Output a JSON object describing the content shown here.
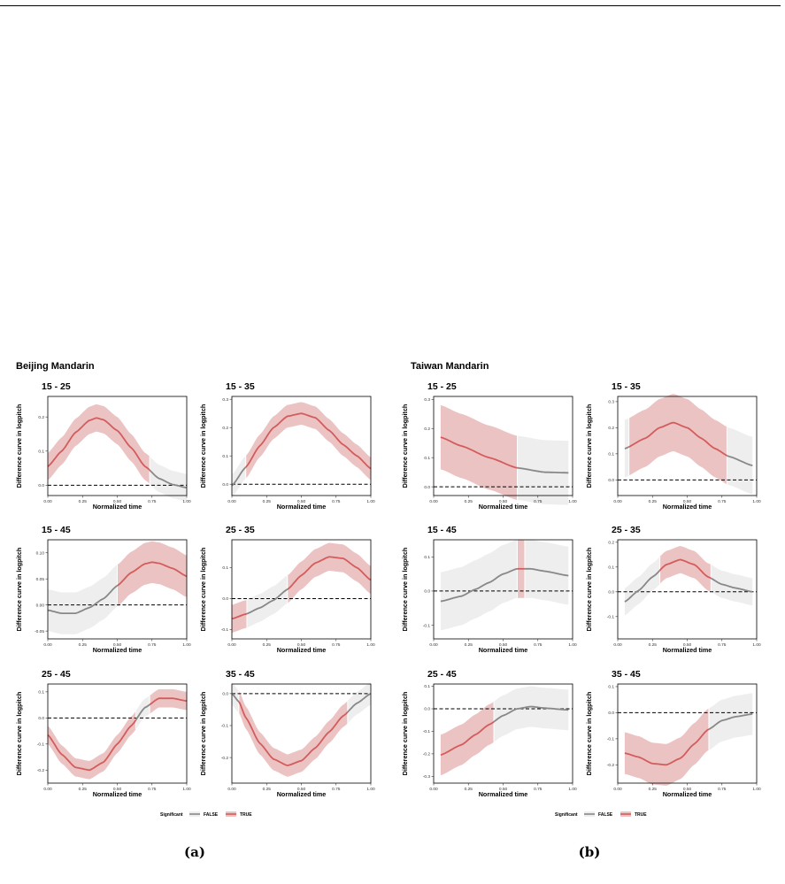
{
  "colors": {
    "significant": "#d35c5c",
    "significant_band": "#ecc3c3",
    "nonsignificant": "#888888",
    "nonsignificant_band": "#eeeeee"
  },
  "legend": {
    "title": "Significant",
    "false_label": "FALSE",
    "true_label": "TRUE"
  },
  "subfigure_labels": [
    "(a)",
    "(b)"
  ],
  "chart_data": [
    {
      "group": "Beijing Mandarin",
      "panels": [
        {
          "type": "line",
          "title": "15 - 25",
          "xlabel": "Normalized time",
          "ylabel": "Difference curve in logpitch",
          "xlim": [
            0,
            1
          ],
          "ylim": [
            -0.03,
            0.26
          ],
          "yticks": [
            0.0,
            0.1,
            0.2
          ],
          "yticklabels": [
            "0.0",
            "0.1",
            "0.2"
          ],
          "x": [
            0,
            0.1,
            0.2,
            0.3,
            0.35,
            0.4,
            0.5,
            0.6,
            0.7,
            0.8,
            0.9,
            1.0
          ],
          "y": [
            0.055,
            0.1,
            0.155,
            0.19,
            0.197,
            0.192,
            0.16,
            0.11,
            0.055,
            0.02,
            0.002,
            -0.007
          ],
          "band": 0.04,
          "sig_ranges": [
            [
              0,
              0.73
            ]
          ]
        },
        {
          "type": "line",
          "title": "15 - 35",
          "xlabel": "Normalized time",
          "ylabel": "Difference curve in logpitch",
          "xlim": [
            0,
            1
          ],
          "ylim": [
            -0.04,
            0.31
          ],
          "yticks": [
            0.0,
            0.1,
            0.2,
            0.3
          ],
          "yticklabels": [
            "0.0",
            "0.1",
            "0.2",
            "0.3"
          ],
          "x": [
            0,
            0.1,
            0.2,
            0.3,
            0.4,
            0.5,
            0.6,
            0.7,
            0.8,
            0.9,
            1.0
          ],
          "y": [
            -0.005,
            0.06,
            0.135,
            0.2,
            0.24,
            0.25,
            0.235,
            0.19,
            0.14,
            0.1,
            0.055
          ],
          "band": 0.04,
          "sig_ranges": [
            [
              0.1,
              1.0
            ]
          ]
        },
        {
          "type": "line",
          "title": "15 - 45",
          "xlabel": "Normalized time",
          "ylabel": "Difference curve in logpitch",
          "xlim": [
            0,
            1
          ],
          "ylim": [
            -0.065,
            0.125
          ],
          "yticks": [
            -0.05,
            0.0,
            0.05,
            0.1
          ],
          "yticklabels": [
            "-0.05",
            "0.00",
            "0.05",
            "0.10"
          ],
          "x": [
            0,
            0.1,
            0.2,
            0.3,
            0.4,
            0.5,
            0.6,
            0.7,
            0.75,
            0.8,
            0.9,
            1.0
          ],
          "y": [
            -0.01,
            -0.016,
            -0.016,
            -0.005,
            0.012,
            0.037,
            0.062,
            0.079,
            0.082,
            0.08,
            0.07,
            0.055
          ],
          "band": 0.04,
          "sig_ranges": [
            [
              0.5,
              1.0
            ]
          ]
        },
        {
          "type": "line",
          "title": "25 - 35",
          "xlabel": "Normalized time",
          "ylabel": "Difference curve in logpitch",
          "xlim": [
            0,
            1
          ],
          "ylim": [
            -0.13,
            0.19
          ],
          "yticks": [
            -0.1,
            0.0,
            0.1
          ],
          "yticklabels": [
            "-0.1",
            "0.0",
            "0.1"
          ],
          "x": [
            0,
            0.1,
            0.2,
            0.3,
            0.4,
            0.5,
            0.6,
            0.7,
            0.8,
            0.9,
            1.0
          ],
          "y": [
            -0.065,
            -0.05,
            -0.03,
            -0.005,
            0.03,
            0.075,
            0.115,
            0.135,
            0.13,
            0.1,
            0.06
          ],
          "band": 0.045,
          "sig_ranges": [
            [
              0,
              0.1
            ],
            [
              0.4,
              1.0
            ]
          ]
        },
        {
          "type": "line",
          "title": "25 - 45",
          "xlabel": "Normalized time",
          "ylabel": "Difference curve in logpitch",
          "xlim": [
            0,
            1
          ],
          "ylim": [
            -0.25,
            0.13
          ],
          "yticks": [
            -0.2,
            -0.1,
            0.0,
            0.1
          ],
          "yticklabels": [
            "-0.2",
            "-0.1",
            "0.0",
            "0.1"
          ],
          "x": [
            0,
            0.1,
            0.2,
            0.3,
            0.4,
            0.5,
            0.6,
            0.7,
            0.8,
            0.9,
            1.0
          ],
          "y": [
            -0.065,
            -0.14,
            -0.19,
            -0.2,
            -0.17,
            -0.1,
            -0.03,
            0.04,
            0.075,
            0.075,
            0.065
          ],
          "band": 0.035,
          "sig_ranges": [
            [
              0,
              0.63
            ],
            [
              0.73,
              1.0
            ]
          ]
        },
        {
          "type": "line",
          "title": "35 - 45",
          "xlabel": "Normalized time",
          "ylabel": "Difference curve in logpitch",
          "xlim": [
            0,
            1
          ],
          "ylim": [
            -0.28,
            0.03
          ],
          "yticks": [
            -0.2,
            -0.1,
            0.0
          ],
          "yticklabels": [
            "-0.2",
            "-0.1",
            "0.0"
          ],
          "x": [
            0,
            0.05,
            0.1,
            0.2,
            0.3,
            0.4,
            0.5,
            0.6,
            0.7,
            0.8,
            0.9,
            1.0
          ],
          "y": [
            0,
            -0.025,
            -0.075,
            -0.155,
            -0.205,
            -0.225,
            -0.21,
            -0.17,
            -0.12,
            -0.07,
            -0.03,
            0
          ],
          "band": 0.035,
          "sig_ranges": [
            [
              0.05,
              0.83
            ]
          ]
        }
      ]
    },
    {
      "group": "Taiwan Mandarin",
      "panels": [
        {
          "type": "line",
          "title": "15 - 25",
          "xlabel": "Normalized time",
          "ylabel": "Difference curve in logpitch",
          "xlim": [
            0,
            1
          ],
          "ylim": [
            -0.03,
            0.31
          ],
          "yticks": [
            0.0,
            0.1,
            0.2,
            0.3
          ],
          "yticklabels": [
            "0.0",
            "0.1",
            "0.2",
            "0.3"
          ],
          "x": [
            0.05,
            0.2,
            0.4,
            0.6,
            0.8,
            0.97
          ],
          "y": [
            0.17,
            0.14,
            0.1,
            0.065,
            0.05,
            0.048
          ],
          "band": 0.11,
          "sig_ranges": [
            [
              0.05,
              0.6
            ]
          ]
        },
        {
          "type": "line",
          "title": "15 - 35",
          "xlabel": "Normalized time",
          "ylabel": "Difference curve in logpitch",
          "xlim": [
            0,
            1
          ],
          "ylim": [
            -0.06,
            0.32
          ],
          "yticks": [
            0.0,
            0.1,
            0.2,
            0.3
          ],
          "yticklabels": [
            "0.0",
            "0.1",
            "0.2",
            "0.3"
          ],
          "x": [
            0.05,
            0.2,
            0.3,
            0.4,
            0.5,
            0.6,
            0.7,
            0.8,
            0.97
          ],
          "y": [
            0.12,
            0.16,
            0.2,
            0.22,
            0.2,
            0.16,
            0.12,
            0.09,
            0.055
          ],
          "band": 0.11,
          "sig_ranges": [
            [
              0.08,
              0.78
            ]
          ]
        },
        {
          "type": "line",
          "title": "15 - 45",
          "xlabel": "Normalized time",
          "ylabel": "Difference curve in logpitch",
          "xlim": [
            0,
            1
          ],
          "ylim": [
            -0.14,
            0.15
          ],
          "yticks": [
            -0.1,
            0.0,
            0.1
          ],
          "yticklabels": [
            "-0.1",
            "0.0",
            "0.1"
          ],
          "x": [
            0.05,
            0.2,
            0.3,
            0.4,
            0.5,
            0.6,
            0.7,
            0.8,
            0.97
          ],
          "y": [
            -0.03,
            -0.015,
            0.005,
            0.025,
            0.05,
            0.065,
            0.065,
            0.058,
            0.045
          ],
          "band": 0.085,
          "sig_ranges": [
            [
              0.6,
              0.65
            ]
          ]
        },
        {
          "type": "line",
          "title": "25 - 35",
          "xlabel": "Normalized time",
          "ylabel": "Difference curve in logpitch",
          "xlim": [
            0,
            1
          ],
          "ylim": [
            -0.19,
            0.21
          ],
          "yticks": [
            -0.1,
            0.0,
            0.1,
            0.2
          ],
          "yticklabels": [
            "-0.1",
            "0.0",
            "0.1",
            "0.2"
          ],
          "x": [
            0.05,
            0.15,
            0.25,
            0.35,
            0.45,
            0.55,
            0.65,
            0.75,
            0.85,
            0.97
          ],
          "y": [
            -0.04,
            0.005,
            0.06,
            0.11,
            0.13,
            0.11,
            0.06,
            0.03,
            0.015,
            0.0
          ],
          "band": 0.055,
          "sig_ranges": [
            [
              0.3,
              0.67
            ]
          ]
        },
        {
          "type": "line",
          "title": "25 - 45",
          "xlabel": "Normalized time",
          "ylabel": "Difference curve in logpitch",
          "xlim": [
            0,
            1
          ],
          "ylim": [
            -0.33,
            0.11
          ],
          "yticks": [
            -0.3,
            -0.2,
            -0.1,
            0.0,
            0.1
          ],
          "yticklabels": [
            "-0.3",
            "-0.2",
            "-0.1",
            "0.0",
            "0.1"
          ],
          "x": [
            0.05,
            0.2,
            0.3,
            0.4,
            0.5,
            0.6,
            0.7,
            0.8,
            0.97
          ],
          "y": [
            -0.205,
            -0.16,
            -0.115,
            -0.07,
            -0.03,
            0.0,
            0.01,
            0.003,
            -0.005
          ],
          "band": 0.09,
          "sig_ranges": [
            [
              0.05,
              0.43
            ]
          ]
        },
        {
          "type": "line",
          "title": "35 - 45",
          "xlabel": "Normalized time",
          "ylabel": "Difference curve in logpitch",
          "xlim": [
            0,
            1
          ],
          "ylim": [
            -0.27,
            0.11
          ],
          "yticks": [
            -0.2,
            -0.1,
            0.0,
            0.1
          ],
          "yticklabels": [
            "-0.2",
            "-0.1",
            "0.0",
            "0.1"
          ],
          "x": [
            0.05,
            0.15,
            0.25,
            0.35,
            0.45,
            0.55,
            0.65,
            0.75,
            0.85,
            0.97
          ],
          "y": [
            -0.155,
            -0.17,
            -0.195,
            -0.2,
            -0.175,
            -0.12,
            -0.065,
            -0.03,
            -0.015,
            -0.005
          ],
          "band": 0.08,
          "sig_ranges": [
            [
              0.05,
              0.65
            ]
          ]
        }
      ]
    }
  ]
}
